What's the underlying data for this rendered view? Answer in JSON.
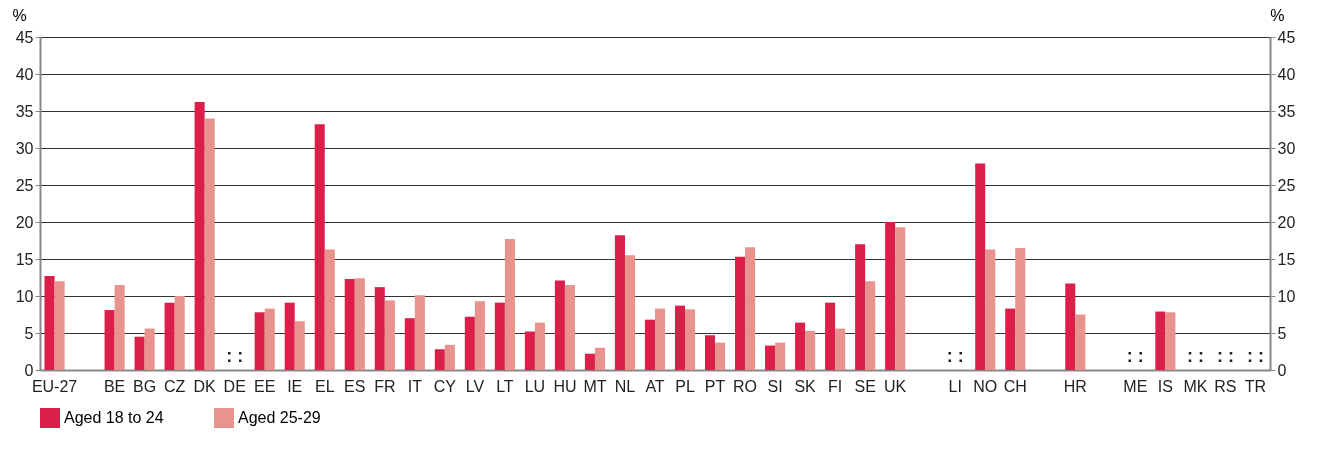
{
  "chart_data": {
    "type": "bar",
    "categories": [
      "EU-27",
      null,
      "BE",
      "BG",
      "CZ",
      "DK",
      "DE",
      "EE",
      "IE",
      "EL",
      "ES",
      "FR",
      "IT",
      "CY",
      "LV",
      "LT",
      "LU",
      "HU",
      "MT",
      "NL",
      "AT",
      "PL",
      "PT",
      "RO",
      "SI",
      "SK",
      "FI",
      "SE",
      "UK",
      null,
      "LI",
      "NO",
      "CH",
      null,
      "HR",
      null,
      "ME",
      "IS",
      "MK",
      "RS",
      "TR"
    ],
    "series": [
      {
        "name": "Aged 18 to 24",
        "color": "#dc1f4a",
        "values": [
          12.7,
          null,
          8.1,
          4.5,
          9.1,
          36.2,
          null,
          7.8,
          9.1,
          33.2,
          12.3,
          11.2,
          7.0,
          2.8,
          7.2,
          9.1,
          5.2,
          12.1,
          2.2,
          18.2,
          6.8,
          8.7,
          4.7,
          15.3,
          3.3,
          6.4,
          9.1,
          17.0,
          20.0,
          null,
          null,
          27.9,
          8.3,
          null,
          11.7,
          null,
          null,
          7.9,
          null,
          null,
          null
        ]
      },
      {
        "name": "Aged 25-29",
        "color": "#e8938e",
        "values": [
          12.0,
          null,
          11.5,
          5.6,
          10.0,
          34.0,
          null,
          8.3,
          6.6,
          16.3,
          12.4,
          9.4,
          10.1,
          3.4,
          9.3,
          17.7,
          6.4,
          11.5,
          3.0,
          15.5,
          8.3,
          8.2,
          3.7,
          16.6,
          3.7,
          5.3,
          5.6,
          12.0,
          19.3,
          null,
          null,
          16.3,
          16.5,
          null,
          7.5,
          null,
          null,
          7.8,
          null,
          null,
          null
        ]
      }
    ],
    "ylabel": "%",
    "y2label": "%",
    "ylim": [
      0,
      45
    ],
    "yticks": [
      0,
      5,
      10,
      15,
      20,
      25,
      30,
      35,
      40,
      45
    ],
    "y2lim": [
      0,
      45
    ],
    "y2ticks": [
      0,
      5,
      10,
      15,
      20,
      25,
      30,
      35,
      40,
      45
    ],
    "grid": "y",
    "legend": "bottom",
    "annotations": [
      ": :",
      ": :",
      ": :",
      ": :",
      ": :",
      ": :"
    ]
  }
}
